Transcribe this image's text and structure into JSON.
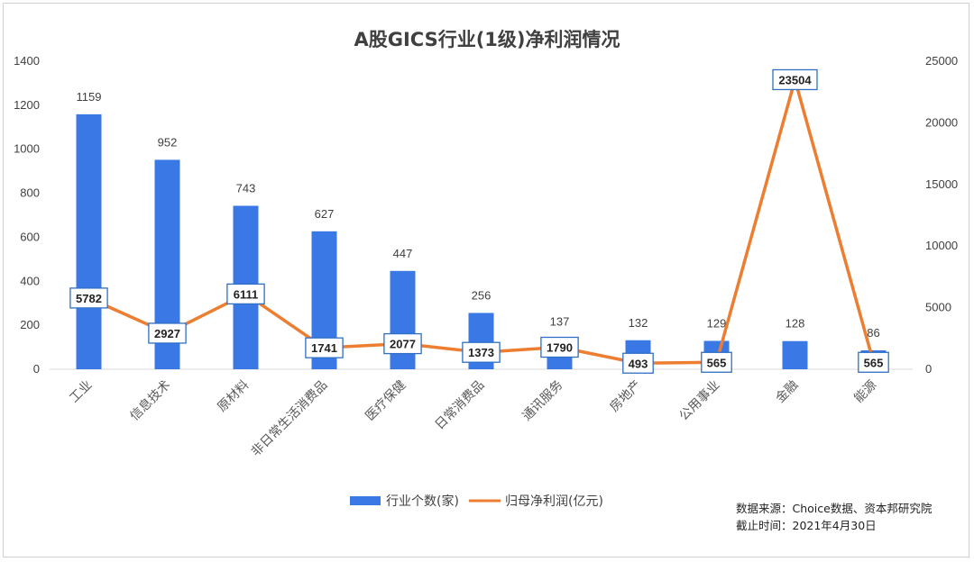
{
  "chart_data": {
    "type": "bar+line",
    "title": "A股GICS行业(1级)净利润情况",
    "categories": [
      "工业",
      "信息技术",
      "原材料",
      "非日常生活消费品",
      "医疗保健",
      "日常消费品",
      "通讯服务",
      "房地产",
      "公用事业",
      "金融",
      "能源"
    ],
    "series": [
      {
        "name": "行业个数(家)",
        "type": "bar",
        "axis": "left",
        "color": "#3a78e6",
        "values": [
          1159,
          952,
          743,
          627,
          447,
          256,
          137,
          132,
          129,
          128,
          86
        ],
        "labels": [
          "1159",
          "952",
          "743",
          "627",
          "447",
          "256",
          "137",
          "132",
          "129",
          "128",
          "86"
        ]
      },
      {
        "name": "归母净利润(亿元)",
        "type": "line",
        "axis": "right",
        "color": "#ed7d31",
        "values": [
          5782,
          2927,
          6111,
          1741,
          2077,
          1373,
          1790,
          493,
          565,
          23504,
          565
        ],
        "labels": [
          "5782",
          "2927",
          "6111",
          "1741",
          "2077",
          "1373",
          "1790",
          "493",
          "565",
          "23504",
          "565"
        ]
      }
    ],
    "y_left": {
      "range": [
        0,
        1400
      ],
      "ticks": [
        "0",
        "200",
        "400",
        "600",
        "800",
        "1000",
        "1200",
        "1400"
      ]
    },
    "y_right": {
      "range": [
        0,
        25000
      ],
      "ticks": [
        "0",
        "5000",
        "10000",
        "15000",
        "20000",
        "25000"
      ]
    },
    "grid": false,
    "legend_position": "bottom"
  },
  "footer": {
    "source": "数据来源：Choice数据、资本邦研究院",
    "cutoff": "截止时间：2021年4月30日"
  }
}
